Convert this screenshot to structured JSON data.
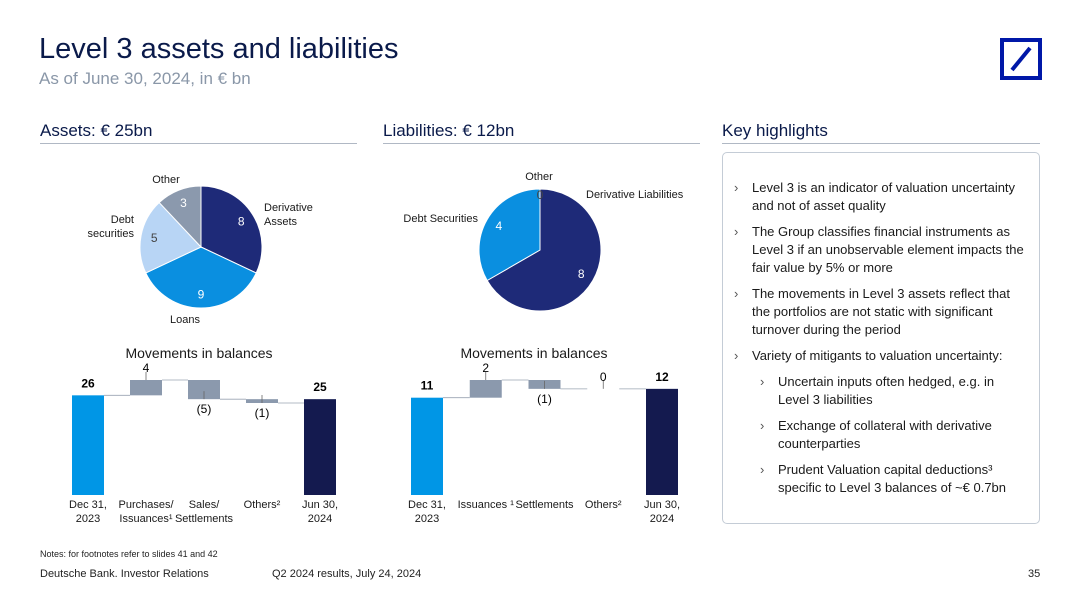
{
  "header": {
    "title": "Level 3 assets and liabilities",
    "subtitle": "As of June 30, 2024, in € bn"
  },
  "chart_data": [
    {
      "type": "pie",
      "title": "Assets: € 25bn",
      "categories": [
        "Derivative Assets",
        "Loans",
        "Debt securities",
        "Other"
      ],
      "values": [
        8,
        9,
        5,
        3
      ],
      "colors": [
        "#1e2a78",
        "#0a8fe0",
        "#b8d5f5",
        "#8b99ad"
      ]
    },
    {
      "type": "waterfall",
      "title": "Movements in balances",
      "categories": [
        "Dec 31, 2023",
        "Purchases/ Issuances¹",
        "Sales/ Settlements",
        "Others²",
        "Jun 30, 2024"
      ],
      "values": [
        26,
        4,
        -5,
        -1,
        25
      ],
      "value_labels": [
        "26",
        "4",
        "(5)",
        "(1)",
        "25"
      ],
      "colors": [
        "#0096e6",
        "#8b99ad",
        "#8b99ad",
        "#8b99ad",
        "#141a4f"
      ]
    },
    {
      "type": "pie",
      "title": "Liabilities: € 12bn",
      "categories": [
        "Derivative Liabilities",
        "Debt Securities",
        "Other"
      ],
      "values": [
        8,
        4,
        0
      ],
      "colors": [
        "#1e2a78",
        "#0a8fe0",
        "#b8d5f5"
      ]
    },
    {
      "type": "waterfall",
      "title": "Movements in balances",
      "categories": [
        "Dec 31, 2023",
        "Issuances ¹",
        "Settlements",
        "Others²",
        "Jun 30, 2024"
      ],
      "values": [
        11,
        2,
        -1,
        0,
        12
      ],
      "value_labels": [
        "11",
        "2",
        "(1)",
        "0",
        "12"
      ],
      "colors": [
        "#0096e6",
        "#8b99ad",
        "#8b99ad",
        "#8b99ad",
        "#141a4f"
      ]
    }
  ],
  "highlights": {
    "heading": "Key highlights",
    "items": [
      {
        "text": "Level 3 is an indicator of valuation uncertainty and not of asset quality"
      },
      {
        "text": "The Group classifies financial instruments as Level 3 if an unobservable element impacts the fair value by 5% or more"
      },
      {
        "text": "The movements in Level 3 assets reflect that the portfolios are not static with significant turnover during the period"
      },
      {
        "text": "Variety of mitigants to valuation uncertainty:",
        "subitems": [
          "Uncertain inputs often hedged, e.g. in Level 3 liabilities",
          "Exchange of collateral with derivative counterparties",
          "Prudent Valuation capital deductions³ specific to Level 3 balances of ~€ 0.7bn"
        ]
      }
    ]
  },
  "footer": {
    "note": "Notes: for footnotes refer to slides 41 and 42",
    "company": "Deutsche Bank. Investor Relations",
    "event": "Q2 2024 results, July 24, 2024",
    "page": "35"
  }
}
